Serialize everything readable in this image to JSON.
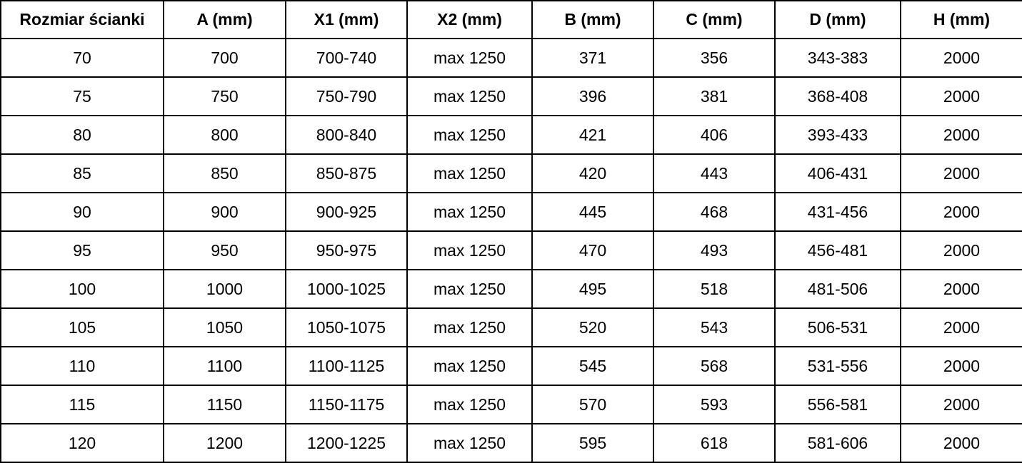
{
  "table": {
    "columns": [
      "Rozmiar ścianki",
      "A (mm)",
      "X1 (mm)",
      "X2 (mm)",
      "B (mm)",
      "C (mm)",
      "D (mm)",
      "H (mm)"
    ],
    "rows": [
      [
        "70",
        "700",
        "700-740",
        "max 1250",
        "371",
        "356",
        "343-383",
        "2000"
      ],
      [
        "75",
        "750",
        "750-790",
        "max 1250",
        "396",
        "381",
        "368-408",
        "2000"
      ],
      [
        "80",
        "800",
        "800-840",
        "max 1250",
        "421",
        "406",
        "393-433",
        "2000"
      ],
      [
        "85",
        "850",
        "850-875",
        "max 1250",
        "420",
        "443",
        "406-431",
        "2000"
      ],
      [
        "90",
        "900",
        "900-925",
        "max 1250",
        "445",
        "468",
        "431-456",
        "2000"
      ],
      [
        "95",
        "950",
        "950-975",
        "max 1250",
        "470",
        "493",
        "456-481",
        "2000"
      ],
      [
        "100",
        "1000",
        "1000-1025",
        "max 1250",
        "495",
        "518",
        "481-506",
        "2000"
      ],
      [
        "105",
        "1050",
        "1050-1075",
        "max 1250",
        "520",
        "543",
        "506-531",
        "2000"
      ],
      [
        "110",
        "1100",
        "1100-1125",
        "max 1250",
        "545",
        "568",
        "531-556",
        "2000"
      ],
      [
        "115",
        "1150",
        "1150-1175",
        "max 1250",
        "570",
        "593",
        "556-581",
        "2000"
      ],
      [
        "120",
        "1200",
        "1200-1225",
        "max 1250",
        "595",
        "618",
        "581-606",
        "2000"
      ]
    ]
  },
  "colors": {
    "border": "#000000",
    "text": "#000000",
    "background": "#ffffff"
  }
}
